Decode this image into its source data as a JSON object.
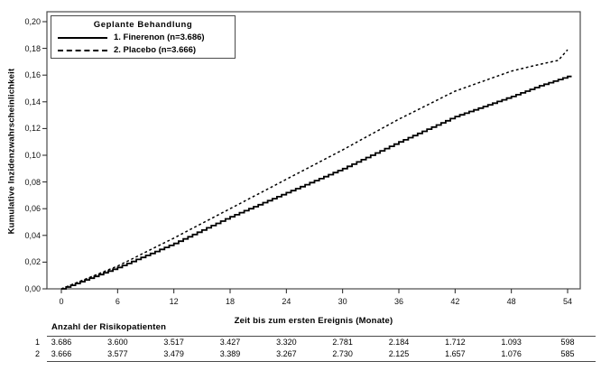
{
  "legend": {
    "title": "Geplante Behandlung",
    "items": [
      {
        "label": "1. Finerenon (n=3.686)",
        "line_style": "solid"
      },
      {
        "label": "2. Placebo (n=3.666)",
        "line_style": "dashed"
      }
    ]
  },
  "chart_data": {
    "type": "line",
    "step": true,
    "title": "",
    "xlabel": "Zeit bis zum ersten Ereignis (Monate)",
    "ylabel": "Kumulative Inzidenzwahrscheinlichkeit",
    "xlim": [
      0,
      54
    ],
    "ylim": [
      0,
      0.2
    ],
    "grid": false,
    "legend_position": "top-left",
    "x_ticks": {
      "values": [
        0,
        6,
        12,
        18,
        24,
        30,
        36,
        42,
        48,
        54
      ],
      "labels": [
        "0",
        "6",
        "12",
        "18",
        "24",
        "30",
        "36",
        "42",
        "48",
        "54"
      ]
    },
    "y_ticks": {
      "values": [
        0,
        0.02,
        0.04,
        0.06,
        0.08,
        0.1,
        0.12,
        0.14,
        0.16,
        0.18,
        0.2
      ],
      "labels": [
        "0,00",
        "0,02",
        "0,04",
        "0,06",
        "0,08",
        "0,10",
        "0,12",
        "0,14",
        "0,16",
        "0,18",
        "0,20"
      ]
    },
    "series": [
      {
        "name": "1. Finerenon (n=3.686)",
        "style": "solid",
        "color": "#000000",
        "x": [
          0,
          6,
          12,
          18,
          24,
          30,
          36,
          42,
          48,
          51,
          54
        ],
        "y": [
          0,
          0.016,
          0.034,
          0.054,
          0.072,
          0.09,
          0.11,
          0.129,
          0.144,
          0.152,
          0.159
        ]
      },
      {
        "name": "2. Placebo (n=3.666)",
        "style": "dashed",
        "color": "#000000",
        "x": [
          0,
          6,
          12,
          18,
          24,
          30,
          36,
          42,
          48,
          51,
          53,
          54
        ],
        "y": [
          0,
          0.017,
          0.038,
          0.06,
          0.082,
          0.104,
          0.127,
          0.148,
          0.163,
          0.168,
          0.171,
          0.179
        ]
      }
    ],
    "risk_table": {
      "title": "Anzahl der Risikopatienten",
      "time_points": [
        0,
        6,
        12,
        18,
        24,
        30,
        36,
        42,
        48,
        54
      ],
      "rows": [
        {
          "label": "1",
          "values": [
            "3.686",
            "3.600",
            "3.517",
            "3.427",
            "3.320",
            "2.781",
            "2.184",
            "1.712",
            "1.093",
            "598"
          ]
        },
        {
          "label": "2",
          "values": [
            "3.666",
            "3.577",
            "3.479",
            "3.389",
            "3.267",
            "2.730",
            "2.125",
            "1.657",
            "1.076",
            "585"
          ]
        }
      ]
    }
  },
  "colors": {
    "line": "#000000",
    "frame": "#4a4a4a",
    "text": "#000000"
  }
}
